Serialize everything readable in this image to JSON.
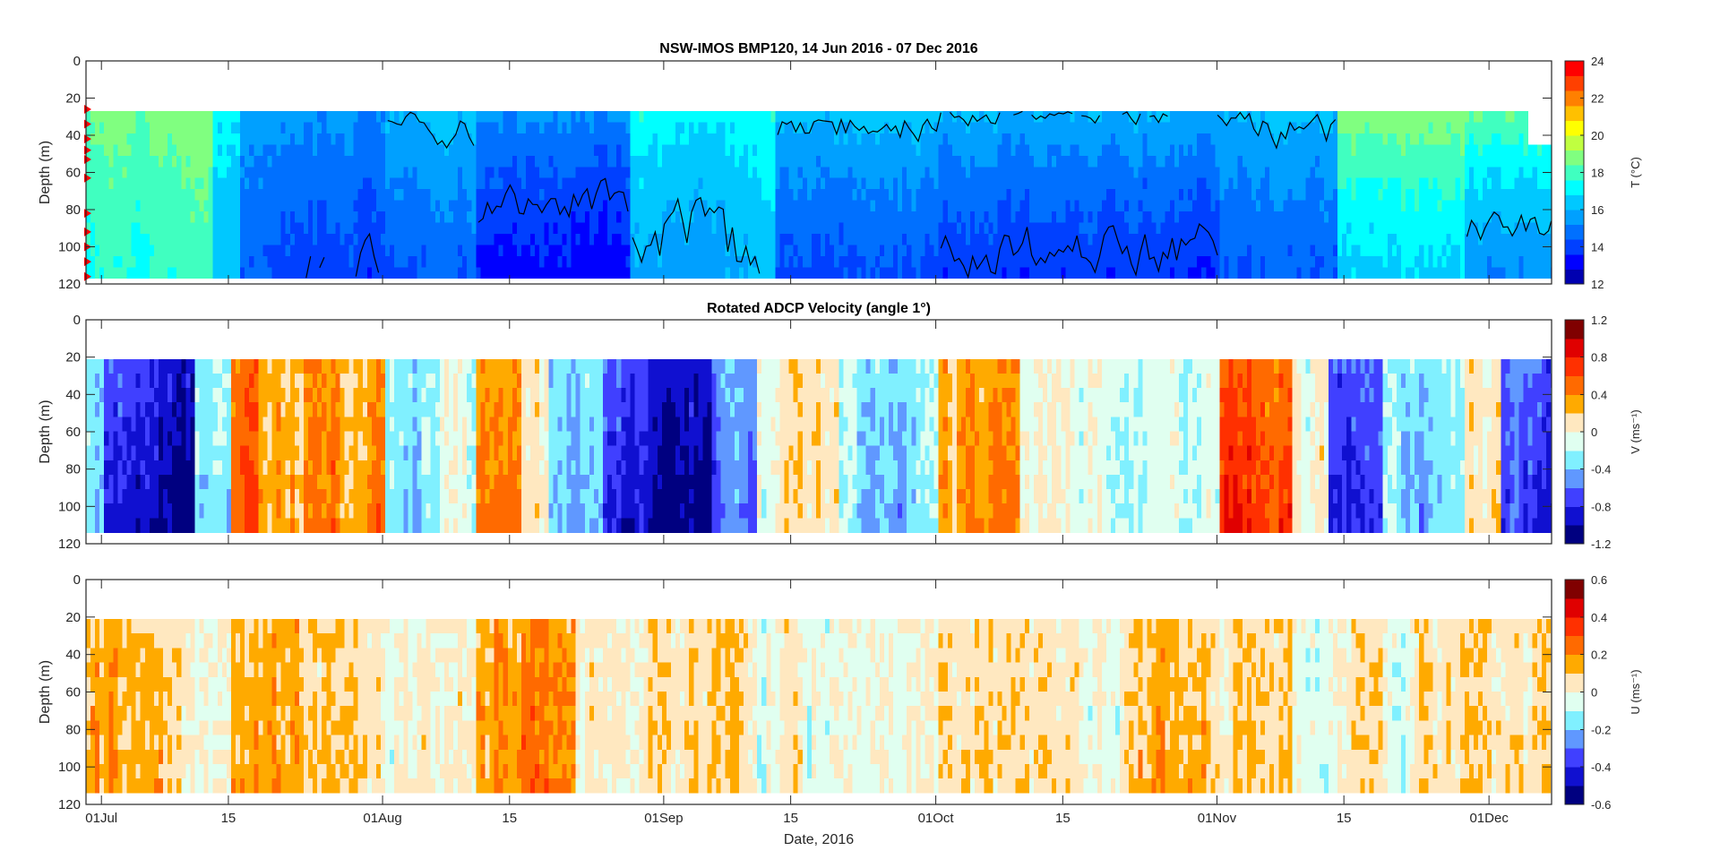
{
  "figure": {
    "title": "NSW-IMOS BMP120,  14 Jun 2016 - 07 Dec 2016",
    "xlabel": "Date, 2016",
    "x_ticks": [
      {
        "day": 0,
        "label": "01Jul"
      },
      {
        "day": 14,
        "label": "15"
      },
      {
        "day": 31,
        "label": "01Aug"
      },
      {
        "day": 45,
        "label": "15"
      },
      {
        "day": 62,
        "label": "01Sep"
      },
      {
        "day": 76,
        "label": "15"
      },
      {
        "day": 92,
        "label": "01Oct"
      },
      {
        "day": 106,
        "label": "15"
      },
      {
        "day": 123,
        "label": "01Nov"
      },
      {
        "day": 137,
        "label": "15"
      },
      {
        "day": 153,
        "label": "01Dec"
      }
    ],
    "x_day_origin": "01 Jul 2016",
    "xlim_days": [
      -1.7,
      159.9
    ]
  },
  "chart_data": [
    {
      "type": "heatmap",
      "name": "temperature",
      "title": "",
      "ylabel": "Depth (m)",
      "ylim": [
        0,
        120
      ],
      "y_ticks": [
        "0",
        "20",
        "40",
        "60",
        "80",
        "100",
        "120"
      ],
      "data_depth_range": [
        27,
        117
      ],
      "colorbar": {
        "label": "T (°C)",
        "range": [
          12,
          24
        ],
        "ticks": [
          "24",
          "22",
          "20",
          "18",
          "16",
          "14",
          "12"
        ],
        "levels": 14,
        "colors": [
          "#0000b0",
          "#0000ff",
          "#0040ff",
          "#0070ff",
          "#00a0ff",
          "#00c8ff",
          "#00ffff",
          "#40ffc0",
          "#80ff80",
          "#c0ff40",
          "#ffff00",
          "#ffc000",
          "#ff8000",
          "#ff4000",
          "#ff0000"
        ]
      },
      "segments_top_bottom_degC": [
        [
          -1.7,
          12,
          18.8,
          17.6
        ],
        [
          12,
          15,
          17,
          16
        ],
        [
          15,
          31,
          15.6,
          14.1
        ],
        [
          31,
          41,
          16.4,
          14.4
        ],
        [
          41,
          58,
          15.5,
          13.2
        ],
        [
          58,
          67,
          17.3,
          15.6
        ],
        [
          67,
          74,
          17.4,
          15.8
        ],
        [
          74,
          92,
          16.4,
          14.2
        ],
        [
          92,
          123,
          16.1,
          13.7
        ],
        [
          123,
          136,
          16.4,
          14.4
        ],
        [
          136,
          150,
          19.2,
          16.6
        ],
        [
          150,
          160,
          18.6,
          15.2
        ]
      ],
      "isotherms_degC": [
        16,
        14
      ],
      "instrument_depths_m": [
        26,
        34,
        42,
        48,
        53,
        63,
        82,
        92,
        100,
        108,
        116
      ],
      "no_data_block": {
        "days": [
          157.3,
          159.9
        ],
        "depths": [
          27,
          42
        ]
      }
    },
    {
      "type": "heatmap",
      "name": "V-velocity",
      "title": "Rotated ADCP Velocity (angle 1°)",
      "ylabel": "Depth (m)",
      "ylim": [
        0,
        120
      ],
      "y_ticks": [
        "0",
        "20",
        "40",
        "60",
        "80",
        "100",
        "120"
      ],
      "data_depth_range": [
        21,
        114
      ],
      "colorbar": {
        "label": "V (ms⁻¹)",
        "range": [
          -1.2,
          1.2
        ],
        "ticks": [
          "1.2",
          "0.8",
          "0.4",
          "0",
          "-0.4",
          "-0.8",
          "-1.2"
        ],
        "levels": 12,
        "colors": [
          "#000080",
          "#1010d0",
          "#4040ff",
          "#6098ff",
          "#80f0ff",
          "#e0fff0",
          "#ffe8c0",
          "#ffaa00",
          "#ff6a00",
          "#ff3000",
          "#e00000",
          "#800000"
        ]
      },
      "segments_mean_ms": [
        [
          -1.7,
          0,
          -0.3
        ],
        [
          0,
          6,
          -0.8
        ],
        [
          6,
          10,
          -1.05
        ],
        [
          10,
          14,
          -0.3
        ],
        [
          14,
          17,
          0.55
        ],
        [
          17,
          22,
          0.25
        ],
        [
          22,
          26,
          0.5
        ],
        [
          26,
          31,
          0.35
        ],
        [
          31,
          37,
          -0.25
        ],
        [
          37,
          41,
          -0.1
        ],
        [
          41,
          46,
          0.4
        ],
        [
          46,
          49,
          0.1
        ],
        [
          49,
          55,
          -0.35
        ],
        [
          55,
          60,
          -0.75
        ],
        [
          60,
          67,
          -1.0
        ],
        [
          67,
          72,
          -0.6
        ],
        [
          72,
          81,
          0.05
        ],
        [
          81,
          92,
          -0.3
        ],
        [
          92,
          101,
          0.35
        ],
        [
          101,
          112,
          -0.05
        ],
        [
          112,
          123,
          -0.2
        ],
        [
          123,
          131,
          0.6
        ],
        [
          131,
          135,
          0.0
        ],
        [
          135,
          141,
          -0.75
        ],
        [
          141,
          150,
          -0.35
        ],
        [
          150,
          154,
          0.1
        ],
        [
          154,
          160,
          -0.65
        ]
      ]
    },
    {
      "type": "heatmap",
      "name": "U-velocity",
      "title": "",
      "ylabel": "Depth (m)",
      "ylim": [
        0,
        120
      ],
      "y_ticks": [
        "0",
        "20",
        "40",
        "60",
        "80",
        "100",
        "120"
      ],
      "data_depth_range": [
        21,
        114
      ],
      "colorbar": {
        "label": "U (ms⁻¹)",
        "range": [
          -0.6,
          0.6
        ],
        "ticks": [
          "0.6",
          "0.4",
          "0.2",
          "0",
          "-0.2",
          "-0.4",
          "-0.6"
        ],
        "levels": 12,
        "colors": [
          "#000080",
          "#1010d0",
          "#4040ff",
          "#6098ff",
          "#80f0ff",
          "#e0fff0",
          "#ffe8c0",
          "#ffaa00",
          "#ff6a00",
          "#ff3000",
          "#e00000",
          "#800000"
        ]
      },
      "segments_mean_ms": [
        [
          -1.7,
          10,
          0.1
        ],
        [
          10,
          14,
          0.04
        ],
        [
          14,
          22,
          0.13
        ],
        [
          22,
          31,
          0.07
        ],
        [
          31,
          41,
          0.02
        ],
        [
          41,
          46,
          0.13
        ],
        [
          46,
          52,
          0.17
        ],
        [
          52,
          60,
          0.05
        ],
        [
          60,
          72,
          0.09
        ],
        [
          72,
          92,
          0.0
        ],
        [
          92,
          101,
          0.07
        ],
        [
          101,
          112,
          0.02
        ],
        [
          112,
          131,
          0.09
        ],
        [
          131,
          145,
          0.0
        ],
        [
          145,
          160,
          0.07
        ]
      ]
    }
  ]
}
